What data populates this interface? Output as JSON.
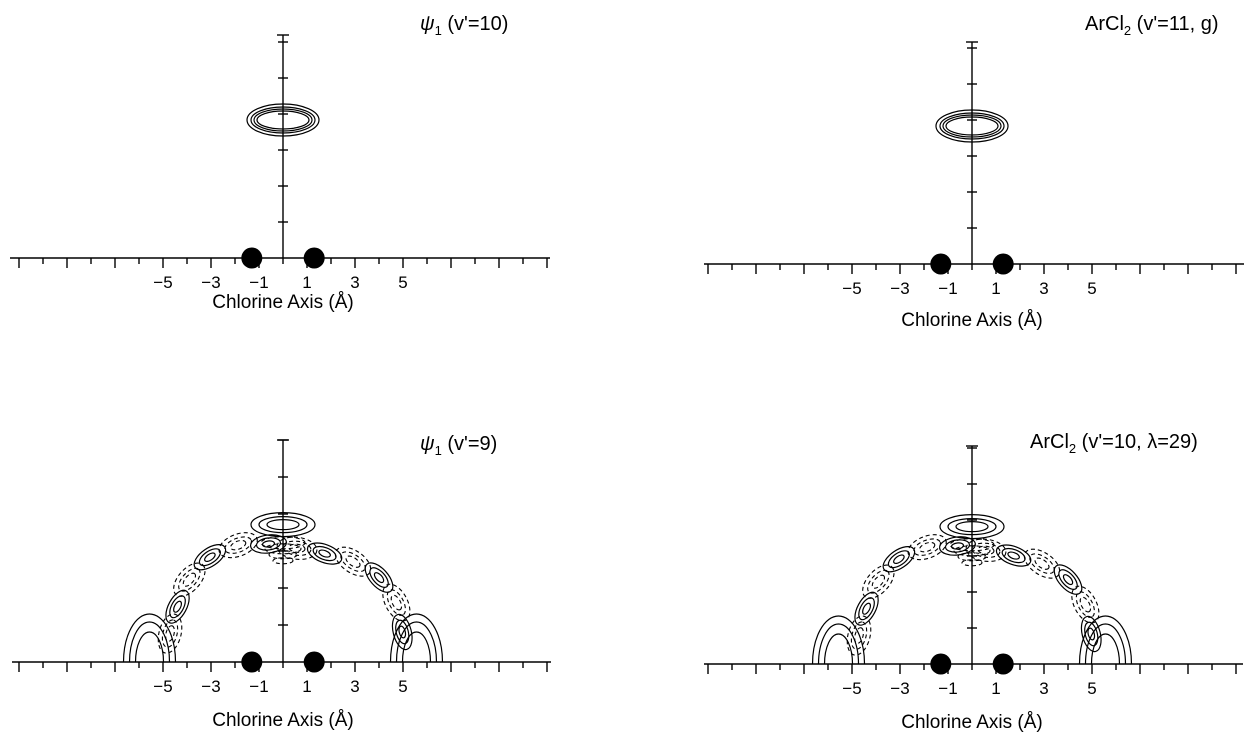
{
  "figure": {
    "panels": [
      {
        "id": "top-left",
        "title_main": "ψ",
        "title_sub": "1",
        "title_rest": " (v'=10)",
        "xlabel": "Chlorine Axis (Å)",
        "x_ticks": [
          "-5",
          "-3",
          "-1",
          "1",
          "3",
          "5"
        ],
        "atoms_x": [
          -1.3,
          1.3
        ],
        "pattern": "single-ellipse"
      },
      {
        "id": "top-right",
        "title_main": "ArCl",
        "title_sub": "2",
        "title_rest": " (v'=11, g)",
        "xlabel": "Chlorine Axis (Å)",
        "x_ticks": [
          "-5",
          "-3",
          "-1",
          "1",
          "3",
          "5"
        ],
        "atoms_x": [
          -1.3,
          1.3
        ],
        "pattern": "single-ellipse"
      },
      {
        "id": "bottom-left",
        "title_main": "ψ",
        "title_sub": "1",
        "title_rest": " (v'=9)",
        "xlabel": "Chlorine Axis (Å)",
        "x_ticks": [
          "-5",
          "-3",
          "-1",
          "1",
          "3",
          "5"
        ],
        "atoms_x": [
          -1.3,
          1.3
        ],
        "pattern": "nodal-arc"
      },
      {
        "id": "bottom-right",
        "title_main": "ArCl",
        "title_sub": "2",
        "title_rest": " (v'=10, λ=29)",
        "xlabel": "Chlorine Axis (Å)",
        "x_ticks": [
          "-5",
          "-3",
          "-1",
          "1",
          "3",
          "5"
        ],
        "atoms_x": [
          -1.3,
          1.3
        ],
        "pattern": "nodal-arc"
      }
    ]
  }
}
